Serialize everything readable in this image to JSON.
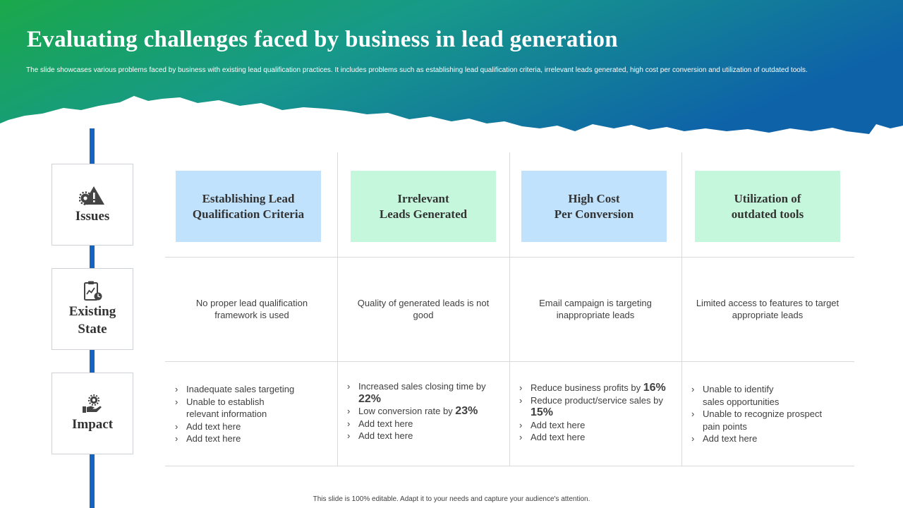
{
  "slide": {
    "title": "Evaluating challenges faced by business in lead generation",
    "subtitle": "The slide showcases various problems faced by business with existing lead qualification practices. It includes problems such as establishing lead qualification criteria, irrelevant leads generated, high cost per conversion and utilization of outdated tools.",
    "footer": "This slide is 100% editable. Adapt it to your needs and capture your audience's attention."
  },
  "colors": {
    "header_green": "#1aa84a",
    "header_teal": "#17998a",
    "header_blue": "#0e63a8",
    "spine_blue": "#1565c0",
    "box_blue": "#c0e2fc",
    "box_green": "#c5f7dc"
  },
  "rows": [
    {
      "label_lines": [
        "Issues"
      ],
      "icon": "warning-gear-icon"
    },
    {
      "label_lines": [
        "Existing",
        "State"
      ],
      "icon": "clipboard-chart-icon"
    },
    {
      "label_lines": [
        "Impact"
      ],
      "icon": "hand-gear-icon"
    }
  ],
  "columns": [
    {
      "issue_lines": [
        "Establishing Lead",
        "Qualification Criteria"
      ],
      "state": "No proper lead qualification framework is used",
      "impacts": [
        {
          "text": "Inadequate sales targeting"
        },
        {
          "text": "Unable to establish relevant information"
        },
        {
          "text": "Add text here"
        },
        {
          "text": "Add text here"
        }
      ]
    },
    {
      "issue_lines": [
        "Irrelevant",
        "Leads Generated"
      ],
      "state": "Quality of generated leads is not good",
      "impacts": [
        {
          "text": "Increased sales closing time by ",
          "emphasis": "22%"
        },
        {
          "text": "Low conversion rate by ",
          "emphasis": "23%"
        },
        {
          "text": "Add text here"
        },
        {
          "text": "Add text here"
        }
      ]
    },
    {
      "issue_lines": [
        "High Cost",
        "Per Conversion"
      ],
      "state": "Email campaign is targeting inappropriate leads",
      "impacts": [
        {
          "text": "Reduce business profits by ",
          "emphasis": "16%"
        },
        {
          "text": "Reduce product/service sales by ",
          "emphasis": "15%"
        },
        {
          "text": "Add text here"
        },
        {
          "text": "Add text here"
        }
      ]
    },
    {
      "issue_lines": [
        "Utilization of",
        "outdated tools"
      ],
      "state": "Limited access to features to target appropriate leads",
      "impacts": [
        {
          "text": "Unable to identify sales opportunities"
        },
        {
          "text": "Unable to recognize prospect pain points"
        },
        {
          "text": "Add text here"
        }
      ]
    }
  ]
}
